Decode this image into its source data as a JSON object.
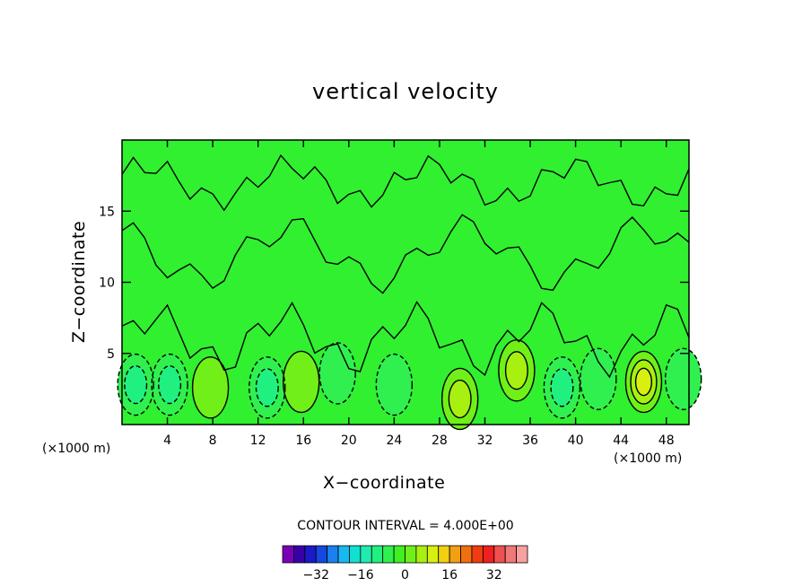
{
  "chart_data": {
    "type": "heatmap",
    "title": "vertical velocity",
    "xlabel": "X−coordinate",
    "ylabel": "Z−coordinate",
    "x_unit_left": "(×1000 m)",
    "x_unit_right": "(×1000 m)",
    "xlim": [
      0,
      50
    ],
    "ylim": [
      0,
      20
    ],
    "xticks": [
      4,
      8,
      12,
      16,
      20,
      24,
      28,
      32,
      36,
      40,
      44,
      48
    ],
    "yticks": [
      5,
      10,
      15
    ],
    "contour_interval_text": "CONTOUR INTERVAL = 4.000E+00",
    "fields": [
      {
        "x": 1.2,
        "z": 2.8,
        "value": -6
      },
      {
        "x": 4.2,
        "z": 2.8,
        "value": -6
      },
      {
        "x": 7.8,
        "z": 2.6,
        "value": 4
      },
      {
        "x": 12.8,
        "z": 2.6,
        "value": -8
      },
      {
        "x": 15.8,
        "z": 3.0,
        "value": 5
      },
      {
        "x": 19.0,
        "z": 3.6,
        "value": -3
      },
      {
        "x": 24.0,
        "z": 2.8,
        "value": -4
      },
      {
        "x": 29.8,
        "z": 1.8,
        "value": 6
      },
      {
        "x": 34.8,
        "z": 3.8,
        "value": 6
      },
      {
        "x": 38.8,
        "z": 2.6,
        "value": -7
      },
      {
        "x": 42.0,
        "z": 3.2,
        "value": -5
      },
      {
        "x": 46.0,
        "z": 3.0,
        "value": 13
      },
      {
        "x": 49.5,
        "z": 3.2,
        "value": -4
      }
    ],
    "colorbar": {
      "colors": [
        "#7a00b8",
        "#3a00a8",
        "#1a1ac8",
        "#1448e0",
        "#1a80f0",
        "#18b8f0",
        "#10e0d0",
        "#20ecb0",
        "#20f080",
        "#30f050",
        "#40f020",
        "#70f018",
        "#a8f010",
        "#d8f010",
        "#f0d010",
        "#f0a010",
        "#f07010",
        "#f03c10",
        "#f02020",
        "#f05050",
        "#f07878",
        "#f8a0a0"
      ],
      "tick_values": [
        -32,
        -16,
        0,
        16,
        32
      ],
      "tick_labels": [
        "−32",
        "−16",
        "0",
        "16",
        "32"
      ]
    }
  }
}
